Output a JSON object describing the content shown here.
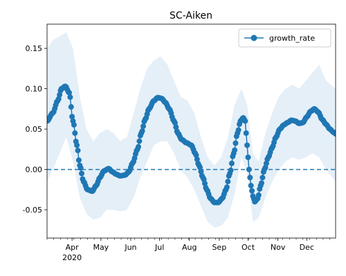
{
  "chart_data": {
    "type": "line",
    "title": "SC-Aiken",
    "xlabel": "",
    "ylabel": "",
    "x_range": [
      "2020-03-06",
      "2020-12-31"
    ],
    "ylim": [
      -0.085,
      0.18
    ],
    "x_ticks": [
      {
        "date": "2020-04-01",
        "label": "Apr",
        "sublabel": "2020"
      },
      {
        "date": "2020-05-01",
        "label": "May"
      },
      {
        "date": "2020-06-01",
        "label": "Jun"
      },
      {
        "date": "2020-07-01",
        "label": "Jul"
      },
      {
        "date": "2020-08-01",
        "label": "Aug"
      },
      {
        "date": "2020-09-01",
        "label": "Sep"
      },
      {
        "date": "2020-10-01",
        "label": "Oct"
      },
      {
        "date": "2020-11-01",
        "label": "Nov"
      },
      {
        "date": "2020-12-01",
        "label": "Dec"
      }
    ],
    "y_ticks": [
      "-0.05",
      "0.00",
      "0.05",
      "0.10",
      "0.15"
    ],
    "y_tick_values": [
      -0.05,
      0.0,
      0.05,
      0.1,
      0.15
    ],
    "reference_line": {
      "y": 0.0,
      "style": "dashed"
    },
    "legend": {
      "position": "upper right",
      "entries": [
        "growth_rate"
      ]
    },
    "colors": {
      "series": "#1f77b4",
      "band": "#c6dbef"
    },
    "series": [
      {
        "name": "growth_rate",
        "points": [
          [
            "2020-03-06",
            0.06
          ],
          [
            "2020-03-12",
            0.07
          ],
          [
            "2020-03-17",
            0.085
          ],
          [
            "2020-03-21",
            0.1
          ],
          [
            "2020-03-25",
            0.103
          ],
          [
            "2020-03-29",
            0.095
          ],
          [
            "2020-04-02",
            0.06
          ],
          [
            "2020-04-06",
            0.03
          ],
          [
            "2020-04-09",
            0.005
          ],
          [
            "2020-04-13",
            -0.015
          ],
          [
            "2020-04-17",
            -0.025
          ],
          [
            "2020-04-22",
            -0.027
          ],
          [
            "2020-04-26",
            -0.02
          ],
          [
            "2020-04-30",
            -0.01
          ],
          [
            "2020-05-04",
            -0.002
          ],
          [
            "2020-05-09",
            0.001
          ],
          [
            "2020-05-13",
            -0.003
          ],
          [
            "2020-05-17",
            -0.006
          ],
          [
            "2020-05-21",
            -0.008
          ],
          [
            "2020-05-26",
            -0.007
          ],
          [
            "2020-05-30",
            -0.003
          ],
          [
            "2020-06-03",
            0.008
          ],
          [
            "2020-06-08",
            0.025
          ],
          [
            "2020-06-12",
            0.045
          ],
          [
            "2020-06-16",
            0.062
          ],
          [
            "2020-06-20",
            0.075
          ],
          [
            "2020-06-25",
            0.085
          ],
          [
            "2020-06-29",
            0.089
          ],
          [
            "2020-07-03",
            0.088
          ],
          [
            "2020-07-07",
            0.083
          ],
          [
            "2020-07-11",
            0.075
          ],
          [
            "2020-07-16",
            0.06
          ],
          [
            "2020-07-20",
            0.045
          ],
          [
            "2020-07-24",
            0.037
          ],
          [
            "2020-07-29",
            0.033
          ],
          [
            "2020-08-03",
            0.03
          ],
          [
            "2020-08-07",
            0.02
          ],
          [
            "2020-08-11",
            0.005
          ],
          [
            "2020-08-15",
            -0.01
          ],
          [
            "2020-08-19",
            -0.025
          ],
          [
            "2020-08-23",
            -0.036
          ],
          [
            "2020-08-27",
            -0.041
          ],
          [
            "2020-08-31",
            -0.041
          ],
          [
            "2020-09-04",
            -0.036
          ],
          [
            "2020-09-08",
            -0.025
          ],
          [
            "2020-09-12",
            -0.005
          ],
          [
            "2020-09-16",
            0.02
          ],
          [
            "2020-09-20",
            0.045
          ],
          [
            "2020-09-23",
            0.06
          ],
          [
            "2020-09-26",
            0.064
          ],
          [
            "2020-09-28",
            0.06
          ],
          [
            "2020-09-30",
            0.03
          ],
          [
            "2020-10-02",
            0.0
          ],
          [
            "2020-10-04",
            -0.02
          ],
          [
            "2020-10-06",
            -0.033
          ],
          [
            "2020-10-08",
            -0.04
          ],
          [
            "2020-10-11",
            -0.036
          ],
          [
            "2020-10-14",
            -0.02
          ],
          [
            "2020-10-18",
            0.0
          ],
          [
            "2020-10-22",
            0.015
          ],
          [
            "2020-10-26",
            0.027
          ],
          [
            "2020-10-30",
            0.04
          ],
          [
            "2020-11-03",
            0.05
          ],
          [
            "2020-11-07",
            0.055
          ],
          [
            "2020-11-11",
            0.058
          ],
          [
            "2020-11-15",
            0.061
          ],
          [
            "2020-11-19",
            0.06
          ],
          [
            "2020-11-23",
            0.057
          ],
          [
            "2020-11-27",
            0.058
          ],
          [
            "2020-12-01",
            0.065
          ],
          [
            "2020-12-05",
            0.072
          ],
          [
            "2020-12-09",
            0.075
          ],
          [
            "2020-12-13",
            0.071
          ],
          [
            "2020-12-17",
            0.062
          ],
          [
            "2020-12-21",
            0.056
          ],
          [
            "2020-12-25",
            0.05
          ],
          [
            "2020-12-29",
            0.046
          ],
          [
            "2020-12-31",
            0.044
          ]
        ],
        "band_upper": [
          [
            "2020-03-06",
            0.15
          ],
          [
            "2020-03-12",
            0.16
          ],
          [
            "2020-03-19",
            0.165
          ],
          [
            "2020-03-26",
            0.17
          ],
          [
            "2020-04-02",
            0.15
          ],
          [
            "2020-04-09",
            0.09
          ],
          [
            "2020-04-16",
            0.05
          ],
          [
            "2020-04-23",
            0.035
          ],
          [
            "2020-04-30",
            0.045
          ],
          [
            "2020-05-07",
            0.05
          ],
          [
            "2020-05-14",
            0.045
          ],
          [
            "2020-05-21",
            0.035
          ],
          [
            "2020-05-28",
            0.04
          ],
          [
            "2020-06-04",
            0.07
          ],
          [
            "2020-06-11",
            0.1
          ],
          [
            "2020-06-18",
            0.125
          ],
          [
            "2020-06-25",
            0.135
          ],
          [
            "2020-07-02",
            0.14
          ],
          [
            "2020-07-09",
            0.13
          ],
          [
            "2020-07-16",
            0.11
          ],
          [
            "2020-07-23",
            0.09
          ],
          [
            "2020-07-30",
            0.085
          ],
          [
            "2020-08-06",
            0.07
          ],
          [
            "2020-08-13",
            0.04
          ],
          [
            "2020-08-20",
            0.015
          ],
          [
            "2020-08-27",
            0.005
          ],
          [
            "2020-09-03",
            0.015
          ],
          [
            "2020-09-10",
            0.04
          ],
          [
            "2020-09-17",
            0.08
          ],
          [
            "2020-09-24",
            0.1
          ],
          [
            "2020-09-30",
            0.08
          ],
          [
            "2020-10-06",
            0.02
          ],
          [
            "2020-10-12",
            0.01
          ],
          [
            "2020-10-19",
            0.045
          ],
          [
            "2020-10-26",
            0.07
          ],
          [
            "2020-11-02",
            0.09
          ],
          [
            "2020-11-09",
            0.1
          ],
          [
            "2020-11-16",
            0.105
          ],
          [
            "2020-11-23",
            0.1
          ],
          [
            "2020-11-30",
            0.11
          ],
          [
            "2020-12-07",
            0.12
          ],
          [
            "2020-12-14",
            0.13
          ],
          [
            "2020-12-21",
            0.11
          ],
          [
            "2020-12-31",
            0.1
          ]
        ],
        "band_lower": [
          [
            "2020-03-06",
            -0.015
          ],
          [
            "2020-03-12",
            0.0
          ],
          [
            "2020-03-19",
            0.02
          ],
          [
            "2020-03-26",
            0.04
          ],
          [
            "2020-04-02",
            0.01
          ],
          [
            "2020-04-09",
            -0.035
          ],
          [
            "2020-04-16",
            -0.055
          ],
          [
            "2020-04-23",
            -0.062
          ],
          [
            "2020-04-30",
            -0.06
          ],
          [
            "2020-05-07",
            -0.05
          ],
          [
            "2020-05-14",
            -0.05
          ],
          [
            "2020-05-21",
            -0.052
          ],
          [
            "2020-05-28",
            -0.05
          ],
          [
            "2020-06-04",
            -0.035
          ],
          [
            "2020-06-11",
            -0.01
          ],
          [
            "2020-06-18",
            0.01
          ],
          [
            "2020-06-25",
            0.03
          ],
          [
            "2020-07-02",
            0.035
          ],
          [
            "2020-07-09",
            0.035
          ],
          [
            "2020-07-16",
            0.02
          ],
          [
            "2020-07-23",
            0.0
          ],
          [
            "2020-07-30",
            -0.01
          ],
          [
            "2020-08-06",
            -0.025
          ],
          [
            "2020-08-13",
            -0.045
          ],
          [
            "2020-08-20",
            -0.065
          ],
          [
            "2020-08-27",
            -0.072
          ],
          [
            "2020-09-03",
            -0.07
          ],
          [
            "2020-09-10",
            -0.06
          ],
          [
            "2020-09-17",
            -0.03
          ],
          [
            "2020-09-24",
            0.015
          ],
          [
            "2020-09-30",
            -0.005
          ],
          [
            "2020-10-06",
            -0.065
          ],
          [
            "2020-10-12",
            -0.06
          ],
          [
            "2020-10-19",
            -0.035
          ],
          [
            "2020-10-26",
            -0.015
          ],
          [
            "2020-11-02",
            0.0
          ],
          [
            "2020-11-09",
            0.01
          ],
          [
            "2020-11-16",
            0.015
          ],
          [
            "2020-11-23",
            0.012
          ],
          [
            "2020-11-30",
            0.015
          ],
          [
            "2020-12-07",
            0.02
          ],
          [
            "2020-12-14",
            0.015
          ],
          [
            "2020-12-21",
            0.0
          ],
          [
            "2020-12-31",
            -0.015
          ]
        ]
      }
    ]
  }
}
